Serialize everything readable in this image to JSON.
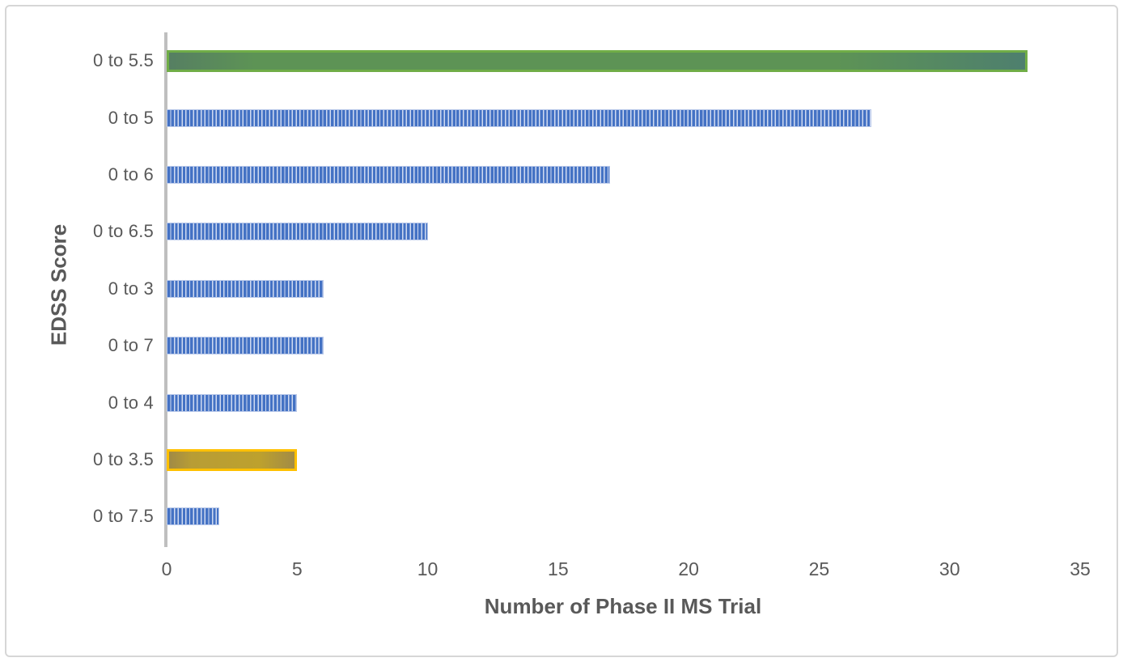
{
  "chart_data": {
    "type": "bar",
    "orientation": "horizontal",
    "title": "",
    "xlabel": "Number of Phase II MS Trial",
    "ylabel": "EDSS Score",
    "categories": [
      "0 to 5.5",
      "0 to 5",
      "0 to 6",
      "0 to 6.5",
      "0 to 3",
      "0 to 7",
      "0 to 4",
      "0 to 3.5",
      "0 to 7.5"
    ],
    "values": [
      33,
      27,
      17,
      10,
      6,
      6,
      5,
      5,
      2
    ],
    "bar_styles": [
      "green",
      "pattern",
      "pattern",
      "pattern",
      "pattern",
      "pattern",
      "pattern",
      "yellow",
      "pattern"
    ],
    "xlim": [
      0,
      35
    ],
    "xticks": [
      0,
      5,
      10,
      15,
      20,
      25,
      30,
      35
    ],
    "grid": false,
    "legend": null,
    "colors": {
      "blue_bar": "#4472C4",
      "blue_stripe_light": "#cfdaf1",
      "green_border": "#70AD47",
      "green_fill": "#5d9355",
      "yellow_border": "#FFC000",
      "yellow_fill": "#bda12e",
      "axis_line": "#BFBFBF",
      "label_text": "#595959",
      "frame_border": "#d6d6d6"
    }
  }
}
